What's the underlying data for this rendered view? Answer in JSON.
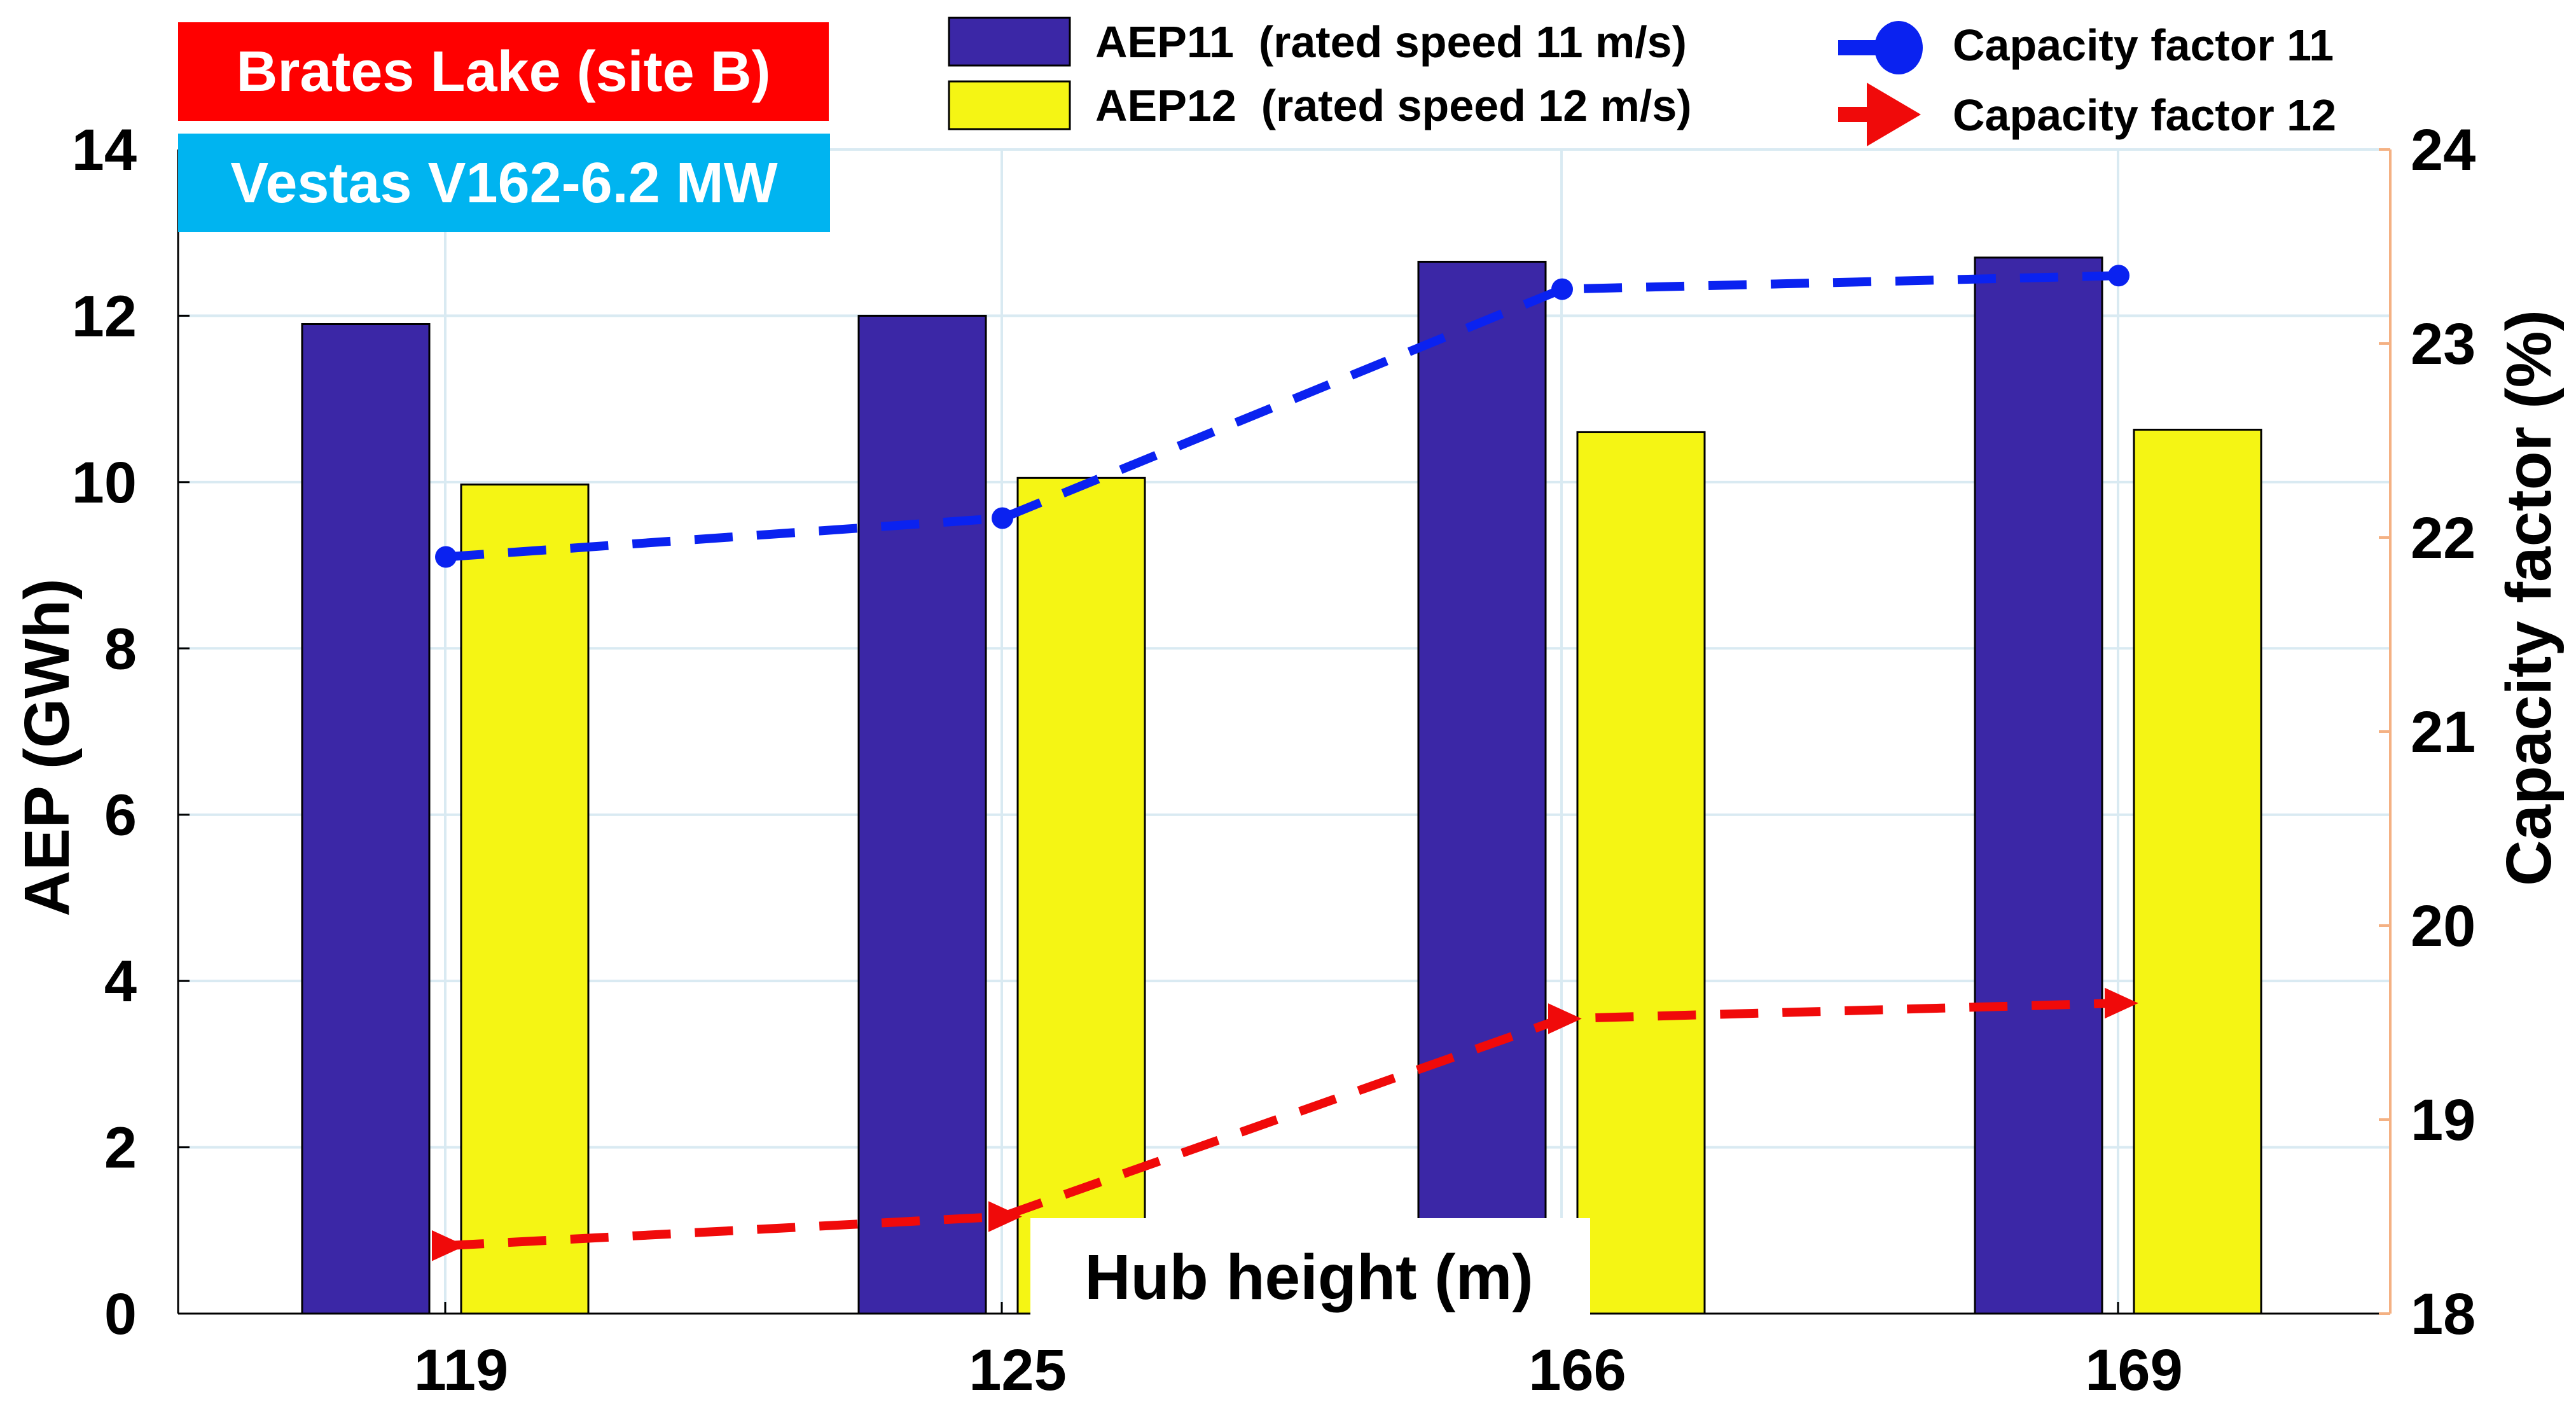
{
  "colors": {
    "aep11": "#3b27a6",
    "aep12": "#f5f514",
    "cf11": "#0a22f0",
    "cf12": "#f00a0a",
    "site_tag": "#ff0000",
    "turbine_tag": "#00b4f0",
    "right_axis": "#f4b183",
    "grid": "#d9eaf2"
  },
  "tags": {
    "site": "Brates Lake (site B)",
    "turbine": "Vestas V162-6.2 MW"
  },
  "chart_data": {
    "type": "bar",
    "xlabel": "Hub height (m)",
    "ylabel": "AEP (GWh)",
    "y2label": "Capacity factor (%)",
    "categories": [
      "119",
      "125",
      "166",
      "169"
    ],
    "ylim": [
      0,
      14
    ],
    "yticks": [
      0,
      2,
      4,
      6,
      8,
      10,
      12,
      14
    ],
    "y2lim": [
      18,
      24
    ],
    "y2ticks": [
      18,
      19,
      20,
      21,
      22,
      23,
      24
    ],
    "grid": true,
    "series": [
      {
        "name": "AEP11",
        "label": "AEP11  (rated speed 11 m/s)",
        "axis": "left",
        "kind": "bar",
        "values": [
          11.9,
          12.0,
          12.65,
          12.7
        ]
      },
      {
        "name": "AEP12",
        "label": "AEP12  (rated speed 12 m/s)",
        "axis": "left",
        "kind": "bar",
        "values": [
          9.97,
          10.05,
          10.6,
          10.63
        ]
      },
      {
        "name": "Capacity factor 11",
        "label": "Capacity factor 11",
        "axis": "right",
        "kind": "line",
        "marker": "circle",
        "values": [
          21.9,
          22.1,
          23.28,
          23.35
        ]
      },
      {
        "name": "Capacity factor 12",
        "label": "Capacity factor 12",
        "axis": "right",
        "kind": "line",
        "marker": "triangle-right",
        "values": [
          18.35,
          18.5,
          19.52,
          19.6
        ]
      }
    ]
  }
}
